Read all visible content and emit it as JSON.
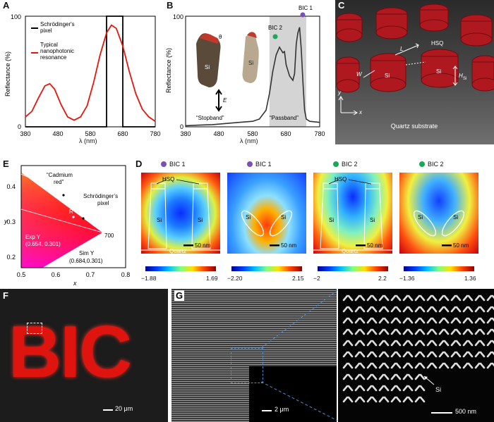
{
  "panels": {
    "A": {
      "letter": "A",
      "chart_data": {
        "type": "line",
        "xlabel": "λ (nm)",
        "ylabel": "Reflectance (%)",
        "xlim": [
          380,
          780
        ],
        "ylim": [
          0,
          100
        ],
        "xticks": [
          "380",
          "480",
          "580",
          "680",
          "780"
        ],
        "yticks": [
          "0",
          "100"
        ],
        "legend_position": "top-left",
        "series": [
          {
            "name": "Schrödinger's pixel",
            "color": "#000000",
            "x": [
              380,
              630,
              630,
              680,
              680,
              780
            ],
            "y": [
              0,
              0,
              100,
              100,
              0,
              0
            ]
          },
          {
            "name": "Typical nanophotonic resonance",
            "color": "#e8140c",
            "x": [
              380,
              400,
              420,
              440,
              455,
              470,
              490,
              510,
              530,
              550,
              570,
              590,
              610,
              630,
              645,
              660,
              680,
              700,
              720,
              740,
              760,
              780
            ],
            "y": [
              9,
              14,
              26,
              37,
              39,
              34,
              20,
              9,
              6,
              9,
              19,
              40,
              65,
              85,
              92,
              89,
              73,
              50,
              30,
              16,
              9,
              5
            ]
          }
        ]
      },
      "legend": {
        "item1_line1": "Schrödinger's",
        "item1_line2": "pixel",
        "item2_line1": "Typical",
        "item2_line2": "nanophotonic",
        "item2_line3": "resonance"
      }
    },
    "B": {
      "letter": "B",
      "chart_data": {
        "type": "line",
        "xlabel": "λ (nm)",
        "ylabel": "Reflectance (%)",
        "xlim": [
          380,
          780
        ],
        "ylim": [
          0,
          100
        ],
        "xticks": [
          "380",
          "480",
          "580",
          "680",
          "780"
        ],
        "yticks": [
          "0",
          "100"
        ],
        "shaded_band": [
          630,
          740
        ],
        "series": [
          {
            "name": "",
            "color": "#333333",
            "x": [
              380,
              420,
              460,
              500,
              540,
              580,
              600,
              620,
              630,
              640,
              650,
              660,
              670,
              675,
              680,
              690,
              700,
              705,
              710,
              715,
              720,
              725,
              730,
              735,
              740,
              750,
              780
            ],
            "y": [
              1,
              1.5,
              2,
              3,
              4,
              5,
              7,
              15,
              30,
              50,
              65,
              72,
              67,
              68,
              56,
              46,
              42,
              48,
              75,
              85,
              90,
              70,
              40,
              15,
              7,
              5,
              4
            ]
          }
        ],
        "annotations": [
          "BIC 2",
          "BIC 1",
          "\"Stopband\"",
          "\"Passband\""
        ]
      },
      "bic1": "BIC 1",
      "bic2": "BIC 2",
      "stopband": "“Stopband”",
      "passband": "“Passband”",
      "si1": "Si",
      "si2": "Si",
      "theta": "θ",
      "efield": "E"
    },
    "C": {
      "letter": "C",
      "L": "L",
      "W": "W",
      "HSQ": "HSQ",
      "Si": "Si",
      "H": "H",
      "Hsub": "Si",
      "y": "y",
      "x": "x",
      "substrate": "Quartz substrate"
    },
    "E": {
      "letter": "E",
      "cadmium": "“Cadmium red”",
      "cad1": "“Cadmium",
      "cad2": "red”",
      "schro1": "Schrödinger’s",
      "schro2": "pixel",
      "R": "R",
      "exp1": "Exp Y",
      "exp2": "(0.654, 0.301)",
      "sim1": "Sim Y",
      "sim2": "(0.684,0.301)",
      "nm700": "700",
      "xlabel": "x",
      "ylabel": "y",
      "xticks": [
        "0.5",
        "0.6",
        "0.7",
        "0.8"
      ],
      "yticks": [
        "0.4",
        "0.3",
        "0.2"
      ]
    },
    "D": {
      "letter": "D",
      "maps": [
        {
          "dot_color": "#7b4fb5",
          "title": "BIC 1",
          "hsq": "HSQ",
          "si_l": "Si",
          "si_r": "Si",
          "scale": "50 nm",
          "substrate": "Quartz",
          "cmin": "−1.88",
          "cmax": "1.69"
        },
        {
          "dot_color": "#7b4fb5",
          "title": "BIC 1",
          "hsq": "",
          "si_l": "Si",
          "si_r": "Si",
          "scale": "50 nm",
          "substrate": "",
          "cmin": "−2.20",
          "cmax": "2.15"
        },
        {
          "dot_color": "#1aa85a",
          "title": "BIC 2",
          "hsq": "HSQ",
          "si_l": "Si",
          "si_r": "Si",
          "scale": "50 nm",
          "substrate": "Quartz",
          "cmin": "−2",
          "cmax": "2.2"
        },
        {
          "dot_color": "#1aa85a",
          "title": "BIC 2",
          "hsq": "",
          "si_l": "Si",
          "si_r": "Si",
          "scale": "50 nm",
          "substrate": "",
          "cmin": "−1.36",
          "cmax": "1.36"
        }
      ]
    },
    "F": {
      "letter": "F",
      "text": "BIC",
      "scale": "20 μm"
    },
    "G": {
      "letter": "G",
      "scale_left": "2 μm",
      "scale_right": "500 nm",
      "si": "Si"
    }
  }
}
